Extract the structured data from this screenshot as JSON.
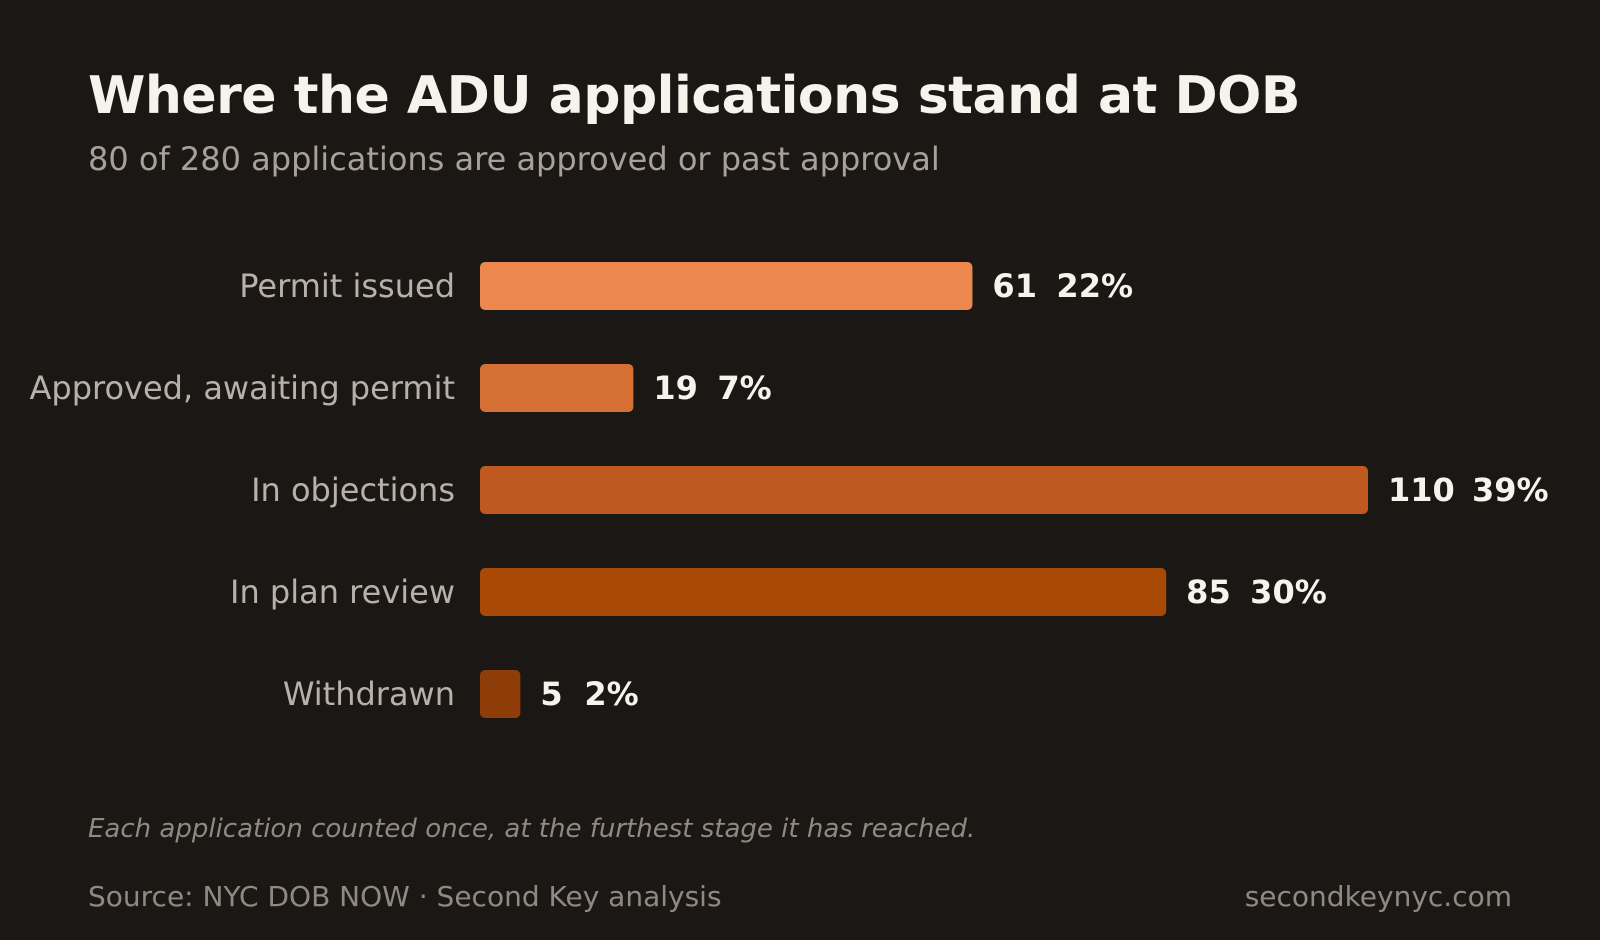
{
  "chart_data": {
    "type": "bar",
    "orientation": "horizontal",
    "title": "Where the ADU applications stand at DOB",
    "subtitle": "80 of 280 applications are approved or past approval",
    "categories": [
      "Permit issued",
      "Approved, awaiting permit",
      "In objections",
      "In plan review",
      "Withdrawn"
    ],
    "values": [
      61,
      19,
      110,
      85,
      5
    ],
    "percent_labels": [
      "22%",
      "7%",
      "39%",
      "30%",
      "2%"
    ],
    "bar_colors": [
      "#ec884d",
      "#d66f34",
      "#bf591f",
      "#a84a05",
      "#8f3d08"
    ],
    "xlim": [
      0,
      110
    ],
    "grid": false,
    "note": "Each application counted once, at the furthest stage it has reached.",
    "source": "Source: NYC DOB NOW · Second Key analysis",
    "site": "secondkeynyc.com"
  },
  "colors": {
    "background": "#1b1715",
    "title": "#f6f2ec",
    "muted": "#a7a19a",
    "value_text": "#f6f2ec"
  }
}
